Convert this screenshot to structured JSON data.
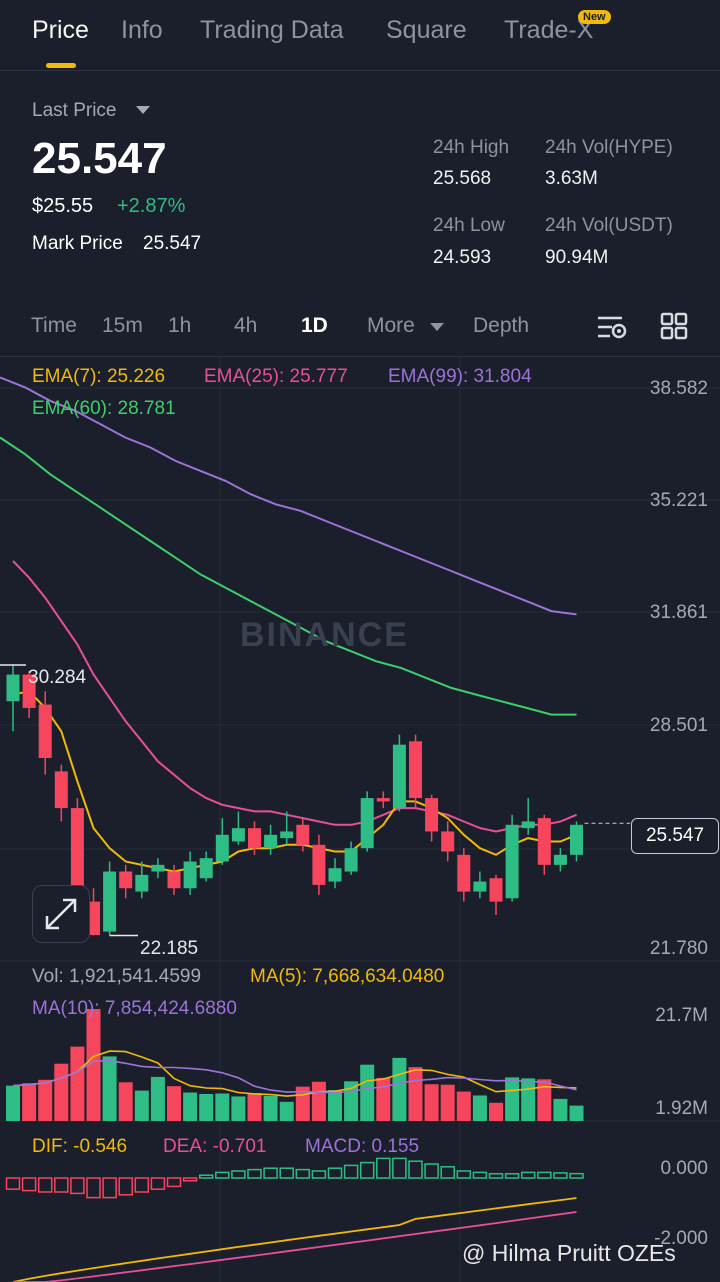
{
  "tabs": [
    {
      "label": "Price",
      "active": true
    },
    {
      "label": "Info",
      "active": false
    },
    {
      "label": "Trading Data",
      "active": false
    },
    {
      "label": "Square",
      "active": false
    },
    {
      "label": "Trade-X",
      "active": false,
      "badge": "New"
    }
  ],
  "summary": {
    "last_price_label": "Last Price",
    "last_price": "25.547",
    "usd_price": "$25.55",
    "change": "+2.87%",
    "mark_price_label": "Mark Price",
    "mark_price": "25.547",
    "high_label": "24h High",
    "high_value": "25.568",
    "vol_hype_label": "24h Vol(HYPE)",
    "vol_hype_value": "3.63M",
    "low_label": "24h Low",
    "low_value": "24.593",
    "vol_usdt_label": "24h Vol(USDT)",
    "vol_usdt_value": "90.94M"
  },
  "intervals": {
    "time": "Time",
    "m15": "15m",
    "h1": "1h",
    "h4": "4h",
    "d1": "1D",
    "more": "More",
    "depth": "Depth",
    "active": "1D"
  },
  "indicators": {
    "ema7": "EMA(7): 25.226",
    "ema25": "EMA(25): 25.777",
    "ema99": "EMA(99): 31.804",
    "ema60": "EMA(60): 28.781",
    "vol": "Vol: 1,921,541.4599",
    "ma5": "MA(5): 7,668,634.0480",
    "ma10": "MA(10): 7,854,424.6880",
    "dif": "DIF: -0.546",
    "dea": "DEA: -0.701",
    "macd": "MACD: 0.155"
  },
  "axis": {
    "price_ticks": [
      "38.582",
      "35.221",
      "31.861",
      "28.501",
      "21.780"
    ],
    "current_price": "25.547",
    "visible_high": "30.284",
    "visible_low": "22.185",
    "vol_ticks": [
      "21.7M",
      "1.92M"
    ],
    "macd_ticks": [
      "0.000",
      "-2.000"
    ]
  },
  "watermark": "BINANCE",
  "credit": "@ Hilma Pruitt OZEs",
  "colors": {
    "up": "#2ebd85",
    "down": "#f6465d",
    "ema7": "#f0b90b",
    "ema25": "#e84f9a",
    "ema99": "#9b73d9",
    "ema60": "#3ecf6a",
    "accent": "#f0b90b"
  },
  "chart_data": {
    "type": "candlestick",
    "price_range": [
      21.78,
      38.582
    ],
    "candles": [
      {
        "o": 29.2,
        "c": 30.0,
        "h": 30.284,
        "l": 28.3
      },
      {
        "o": 30.0,
        "c": 29.0,
        "h": 30.1,
        "l": 28.7
      },
      {
        "o": 29.1,
        "c": 27.5,
        "h": 29.5,
        "l": 27.0
      },
      {
        "o": 27.1,
        "c": 26.0,
        "h": 27.3,
        "l": 25.6
      },
      {
        "o": 26.0,
        "c": 23.2,
        "h": 26.3,
        "l": 23.0
      },
      {
        "o": 23.2,
        "c": 22.2,
        "h": 23.6,
        "l": 22.185
      },
      {
        "o": 22.3,
        "c": 24.1,
        "h": 24.4,
        "l": 22.185
      },
      {
        "o": 24.1,
        "c": 23.6,
        "h": 24.3,
        "l": 23.3
      },
      {
        "o": 23.5,
        "c": 24.0,
        "h": 24.4,
        "l": 23.3
      },
      {
        "o": 24.1,
        "c": 24.3,
        "h": 24.5,
        "l": 23.9
      },
      {
        "o": 24.1,
        "c": 23.6,
        "h": 24.3,
        "l": 23.4
      },
      {
        "o": 23.6,
        "c": 24.4,
        "h": 24.7,
        "l": 23.4
      },
      {
        "o": 23.9,
        "c": 24.5,
        "h": 24.7,
        "l": 23.8
      },
      {
        "o": 24.4,
        "c": 25.2,
        "h": 25.7,
        "l": 24.3
      },
      {
        "o": 25.0,
        "c": 25.4,
        "h": 25.9,
        "l": 24.9
      },
      {
        "o": 25.4,
        "c": 24.8,
        "h": 25.6,
        "l": 24.6
      },
      {
        "o": 24.8,
        "c": 25.2,
        "h": 25.5,
        "l": 24.6
      },
      {
        "o": 25.1,
        "c": 25.3,
        "h": 25.9,
        "l": 24.9
      },
      {
        "o": 25.5,
        "c": 24.9,
        "h": 25.7,
        "l": 24.7
      },
      {
        "o": 24.9,
        "c": 23.7,
        "h": 25.2,
        "l": 23.4
      },
      {
        "o": 23.8,
        "c": 24.2,
        "h": 24.5,
        "l": 23.6
      },
      {
        "o": 24.1,
        "c": 24.8,
        "h": 25.0,
        "l": 24.0
      },
      {
        "o": 24.8,
        "c": 26.3,
        "h": 26.5,
        "l": 24.7
      },
      {
        "o": 26.3,
        "c": 26.2,
        "h": 26.5,
        "l": 26.0
      },
      {
        "o": 26.0,
        "c": 27.9,
        "h": 28.2,
        "l": 25.9
      },
      {
        "o": 28.0,
        "c": 26.3,
        "h": 28.2,
        "l": 26.0
      },
      {
        "o": 26.3,
        "c": 25.3,
        "h": 26.4,
        "l": 25.0
      },
      {
        "o": 25.3,
        "c": 24.7,
        "h": 25.6,
        "l": 24.4
      },
      {
        "o": 24.6,
        "c": 23.5,
        "h": 24.8,
        "l": 23.2
      },
      {
        "o": 23.5,
        "c": 23.8,
        "h": 24.1,
        "l": 23.3
      },
      {
        "o": 23.9,
        "c": 23.2,
        "h": 24.0,
        "l": 22.8
      },
      {
        "o": 23.3,
        "c": 25.5,
        "h": 25.8,
        "l": 23.2
      },
      {
        "o": 25.4,
        "c": 25.6,
        "h": 26.3,
        "l": 25.2
      },
      {
        "o": 25.7,
        "c": 24.3,
        "h": 25.8,
        "l": 24.0
      },
      {
        "o": 24.3,
        "c": 24.6,
        "h": 24.8,
        "l": 24.1
      },
      {
        "o": 24.6,
        "c": 25.5,
        "h": 25.6,
        "l": 24.4
      }
    ],
    "ema7": [
      29.4,
      29.5,
      29.0,
      28.3,
      26.8,
      25.4,
      24.8,
      24.4,
      24.3,
      24.2,
      24.1,
      24.2,
      24.3,
      24.4,
      24.7,
      24.8,
      24.8,
      24.9,
      24.9,
      24.8,
      24.7,
      24.7,
      25.1,
      25.5,
      26.2,
      26.2,
      26.0,
      25.7,
      25.2,
      24.8,
      24.6,
      24.9,
      25.1,
      25.0,
      25.0,
      25.2
    ],
    "ema25": [
      33.4,
      32.9,
      32.3,
      31.6,
      30.9,
      30.0,
      29.3,
      28.6,
      28.0,
      27.4,
      27.0,
      26.6,
      26.3,
      26.1,
      26.0,
      25.9,
      25.9,
      25.8,
      25.7,
      25.6,
      25.5,
      25.5,
      25.6,
      25.8,
      26.0,
      26.0,
      25.9,
      25.8,
      25.6,
      25.4,
      25.3,
      25.4,
      25.5,
      25.5,
      25.6,
      25.8
    ],
    "ema60": [
      37.1,
      36.6,
      36.0,
      35.5,
      35.0,
      34.5,
      34.0,
      33.5,
      33.0,
      32.6,
      32.2,
      31.8,
      31.4,
      31.0,
      30.7,
      30.4,
      30.2,
      29.9,
      29.6,
      29.4,
      29.2,
      29.0,
      28.8,
      28.8
    ],
    "ema99": [
      38.9,
      38.6,
      38.2,
      37.9,
      37.5,
      37.1,
      36.8,
      36.4,
      36.1,
      35.8,
      35.4,
      35.1,
      34.9,
      34.6,
      34.3,
      34.0,
      33.7,
      33.4,
      33.1,
      32.8,
      32.5,
      32.2,
      31.9,
      31.8
    ],
    "volume": [
      6.0,
      6.5,
      7.2,
      10.5,
      14.0,
      21.7,
      12.0,
      6.7,
      5.0,
      7.8,
      5.9,
      4.6,
      4.3,
      4.4,
      3.8,
      4.5,
      3.9,
      2.7,
      5.8,
      6.8,
      5.1,
      6.9,
      10.3,
      7.6,
      11.7,
      9.8,
      6.3,
      6.2,
      4.8,
      4.0,
      2.5,
      7.7,
      7.5,
      7.3,
      3.3,
      1.92
    ],
    "macd_hist": [
      -0.4,
      -0.45,
      -0.5,
      -0.5,
      -0.55,
      -0.7,
      -0.7,
      -0.6,
      -0.5,
      -0.4,
      -0.3,
      -0.1,
      0.1,
      0.2,
      0.25,
      0.3,
      0.35,
      0.35,
      0.3,
      0.25,
      0.35,
      0.45,
      0.55,
      0.7,
      0.7,
      0.6,
      0.5,
      0.4,
      0.25,
      0.2,
      0.15,
      0.15,
      0.2,
      0.2,
      0.18,
      0.155
    ]
  }
}
